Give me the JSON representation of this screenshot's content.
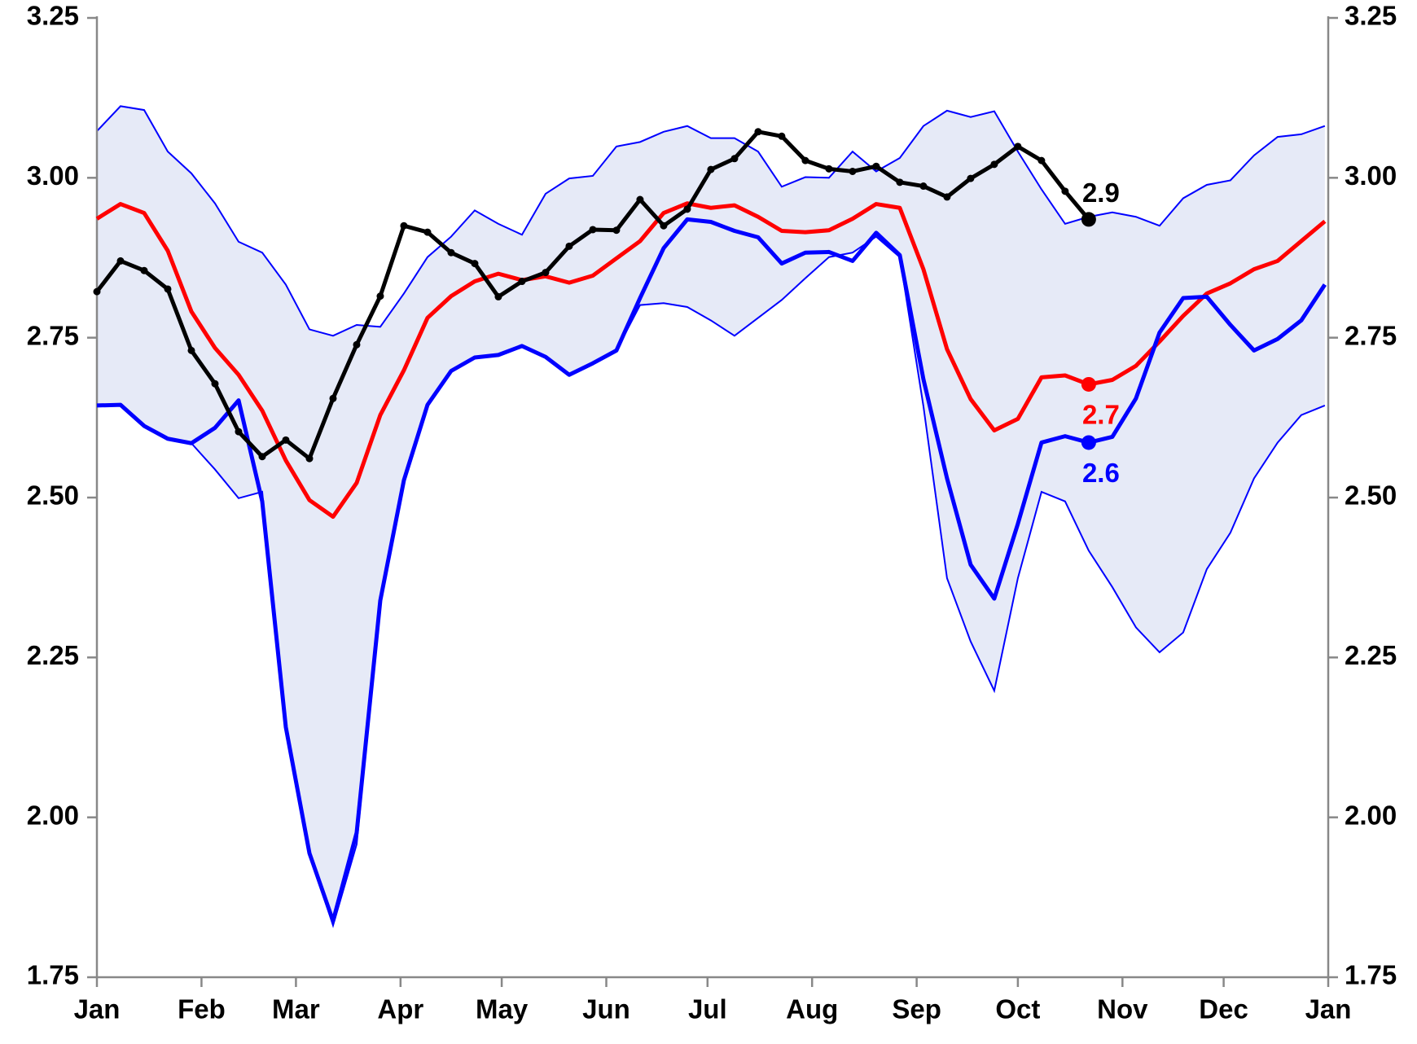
{
  "chart_data": {
    "type": "line",
    "x": [
      0,
      7,
      14,
      21,
      28,
      35,
      42,
      49,
      56,
      63,
      70,
      77,
      84,
      91,
      98,
      105,
      112,
      119,
      126,
      133,
      140,
      147,
      154,
      161,
      168,
      175,
      182,
      189,
      196,
      203,
      210,
      217,
      224,
      231,
      238,
      245,
      252,
      259,
      266,
      273,
      280,
      287,
      294,
      301,
      308,
      315,
      322,
      329,
      336,
      343,
      350,
      357,
      364
    ],
    "xlim": [
      0,
      365
    ],
    "xticks": [
      {
        "value": 0,
        "label": "Jan"
      },
      {
        "value": 31,
        "label": "Feb"
      },
      {
        "value": 59,
        "label": "Mar"
      },
      {
        "value": 90,
        "label": "Apr"
      },
      {
        "value": 120,
        "label": "May"
      },
      {
        "value": 151,
        "label": "Jun"
      },
      {
        "value": 181,
        "label": "Jul"
      },
      {
        "value": 212,
        "label": "Aug"
      },
      {
        "value": 243,
        "label": "Sep"
      },
      {
        "value": 273,
        "label": "Oct"
      },
      {
        "value": 304,
        "label": "Nov"
      },
      {
        "value": 334,
        "label": "Dec"
      },
      {
        "value": 365,
        "label": "Jan"
      }
    ],
    "ylim": [
      1.75,
      3.25
    ],
    "yticks": [
      1.75,
      {
        "value": 2,
        "label": "2.00"
      },
      2.25,
      {
        "value": 2.5,
        "label": "2.50"
      },
      2.75,
      {
        "value": 3,
        "label": "3.00"
      },
      3.25
    ],
    "right_axis": true,
    "band": {
      "color": "#0000ff",
      "fill": "#e6eaf7",
      "upper": [
        3.073,
        3.112,
        3.106,
        3.041,
        3.007,
        2.96,
        2.9,
        2.883,
        2.833,
        2.763,
        2.753,
        2.77,
        2.767,
        2.819,
        2.876,
        2.908,
        2.949,
        2.928,
        2.911,
        2.975,
        2.999,
        3.003,
        3.049,
        3.056,
        3.072,
        3.081,
        3.062,
        3.062,
        3.041,
        2.986,
        3.001,
        3.0,
        3.041,
        3.01,
        3.031,
        3.081,
        3.105,
        3.095,
        3.104,
        3.041,
        2.982,
        2.928,
        2.939,
        2.946,
        2.939,
        2.925,
        2.968,
        2.989,
        2.996,
        3.035,
        3.064,
        3.068,
        3.081
      ],
      "lower": [
        2.644,
        2.645,
        2.612,
        2.592,
        2.585,
        2.544,
        2.499,
        2.509,
        2.141,
        1.944,
        1.831,
        1.958,
        2.339,
        2.527,
        2.645,
        2.698,
        2.719,
        2.723,
        2.737,
        2.72,
        2.692,
        2.71,
        2.73,
        2.801,
        2.804,
        2.798,
        2.777,
        2.753,
        2.781,
        2.809,
        2.843,
        2.876,
        2.883,
        2.908,
        2.876,
        2.643,
        2.374,
        2.275,
        2.198,
        2.374,
        2.509,
        2.494,
        2.417,
        2.36,
        2.297,
        2.258,
        2.289,
        2.388,
        2.445,
        2.53,
        2.586,
        2.629,
        2.644
      ]
    },
    "series": [
      {
        "color": "#ff0000",
        "markers": false,
        "values": [
          2.936,
          2.959,
          2.945,
          2.886,
          2.791,
          2.734,
          2.692,
          2.636,
          2.558,
          2.496,
          2.47,
          2.523,
          2.629,
          2.699,
          2.781,
          2.815,
          2.838,
          2.85,
          2.84,
          2.846,
          2.836,
          2.847,
          2.874,
          2.901,
          2.945,
          2.96,
          2.953,
          2.957,
          2.939,
          2.917,
          2.915,
          2.918,
          2.936,
          2.959,
          2.953,
          2.857,
          2.732,
          2.654,
          2.605,
          2.623,
          2.688,
          2.691,
          2.677,
          2.684,
          2.706,
          2.744,
          2.784,
          2.819,
          2.835,
          2.857,
          2.87,
          2.901,
          2.932
        ]
      },
      {
        "color": "#0000ff",
        "markers": false,
        "values": [
          2.644,
          2.645,
          2.612,
          2.592,
          2.585,
          2.609,
          2.652,
          2.494,
          2.141,
          1.944,
          1.838,
          1.976,
          2.339,
          2.527,
          2.645,
          2.698,
          2.719,
          2.723,
          2.737,
          2.72,
          2.692,
          2.71,
          2.73,
          2.812,
          2.89,
          2.935,
          2.931,
          2.917,
          2.907,
          2.866,
          2.883,
          2.884,
          2.87,
          2.914,
          2.879,
          2.685,
          2.53,
          2.395,
          2.342,
          2.459,
          2.586,
          2.596,
          2.586,
          2.595,
          2.655,
          2.758,
          2.812,
          2.814,
          2.77,
          2.73,
          2.748,
          2.777,
          2.833
        ]
      },
      {
        "color": "#000000",
        "markers": true,
        "values": [
          2.822,
          2.87,
          2.855,
          2.826,
          2.73,
          2.678,
          2.603,
          2.564,
          2.59,
          2.561,
          2.655,
          2.739,
          2.815,
          2.925,
          2.915,
          2.883,
          2.866,
          2.814,
          2.838,
          2.852,
          2.893,
          2.919,
          2.918,
          2.966,
          2.925,
          2.951,
          3.013,
          3.03,
          3.072,
          3.065,
          3.027,
          3.014,
          3.01,
          3.018,
          2.993,
          2.987,
          2.97,
          2.999,
          3.021,
          3.049,
          3.027,
          2.979,
          2.935,
          null,
          null,
          null,
          null,
          null,
          null,
          null,
          null,
          null,
          null
        ]
      }
    ],
    "annotations": [
      {
        "text": "2.9",
        "series": 2,
        "x": 294,
        "position": "above"
      },
      {
        "text": "2.7",
        "series": 0,
        "x": 294,
        "position": "below"
      },
      {
        "text": "2.6",
        "series": 1,
        "x": 294,
        "position": "below"
      }
    ]
  }
}
